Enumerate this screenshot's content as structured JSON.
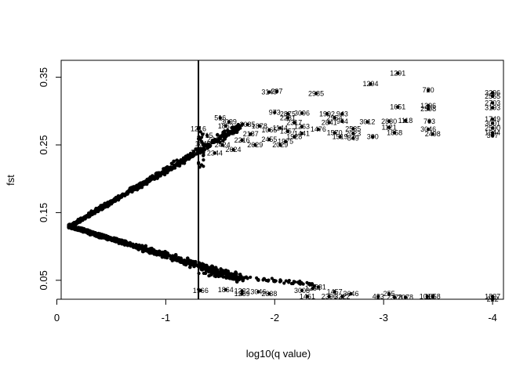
{
  "chart_data": {
    "type": "scatter",
    "title": "",
    "xlabel": "log10(q value)",
    "ylabel": "fst",
    "xlim": [
      -0.04,
      -4.1
    ],
    "ylim": [
      0.022,
      0.375
    ],
    "x_ticks": [
      {
        "value": 0,
        "label": "0"
      },
      {
        "value": -1,
        "label": "-1"
      },
      {
        "value": -2,
        "label": "-2"
      },
      {
        "value": -3,
        "label": "-3"
      },
      {
        "value": -4,
        "label": "-4"
      }
    ],
    "y_ticks": [
      {
        "value": 0.05,
        "label": "0.05"
      },
      {
        "value": 0.15,
        "label": "0.15"
      },
      {
        "value": 0.25,
        "label": "0.25"
      },
      {
        "value": 0.35,
        "label": "0.35"
      }
    ],
    "threshold_x": -1.3,
    "labeled_points": [
      {
        "x": -3.13,
        "y": 0.356,
        "label": "1291"
      },
      {
        "x": -2.88,
        "y": 0.34,
        "label": "1294"
      },
      {
        "x": -3.41,
        "y": 0.331,
        "label": "720"
      },
      {
        "x": -1.95,
        "y": 0.328,
        "label": "3149"
      },
      {
        "x": -2.02,
        "y": 0.329,
        "label": "297"
      },
      {
        "x": -2.38,
        "y": 0.326,
        "label": "2985"
      },
      {
        "x": -4.0,
        "y": 0.327,
        "label": "3296"
      },
      {
        "x": -4.0,
        "y": 0.322,
        "label": "2565"
      },
      {
        "x": -3.41,
        "y": 0.308,
        "label": "1396"
      },
      {
        "x": -3.41,
        "y": 0.303,
        "label": "2598"
      },
      {
        "x": -3.13,
        "y": 0.306,
        "label": "1651"
      },
      {
        "x": -4.0,
        "y": 0.312,
        "label": "2703"
      },
      {
        "x": -4.0,
        "y": 0.305,
        "label": "3193"
      },
      {
        "x": -2.0,
        "y": 0.298,
        "label": "973"
      },
      {
        "x": -2.12,
        "y": 0.296,
        "label": "2875"
      },
      {
        "x": -2.25,
        "y": 0.297,
        "label": "3096"
      },
      {
        "x": -2.48,
        "y": 0.296,
        "label": "1992"
      },
      {
        "x": -2.62,
        "y": 0.296,
        "label": "943"
      },
      {
        "x": -1.5,
        "y": 0.29,
        "label": "516"
      },
      {
        "x": -2.12,
        "y": 0.29,
        "label": "2281"
      },
      {
        "x": -2.55,
        "y": 0.29,
        "label": "2954"
      },
      {
        "x": -2.62,
        "y": 0.285,
        "label": "944"
      },
      {
        "x": -1.58,
        "y": 0.284,
        "label": "3099"
      },
      {
        "x": -1.75,
        "y": 0.28,
        "label": "2085"
      },
      {
        "x": -2.18,
        "y": 0.283,
        "label": "2317"
      },
      {
        "x": -2.25,
        "y": 0.277,
        "label": "1263"
      },
      {
        "x": -2.5,
        "y": 0.283,
        "label": "2841"
      },
      {
        "x": -2.85,
        "y": 0.284,
        "label": "3012"
      },
      {
        "x": -3.05,
        "y": 0.285,
        "label": "2830"
      },
      {
        "x": -3.2,
        "y": 0.286,
        "label": "1118"
      },
      {
        "x": -3.42,
        "y": 0.285,
        "label": "703"
      },
      {
        "x": -4.0,
        "y": 0.288,
        "label": "1749"
      },
      {
        "x": -4.0,
        "y": 0.282,
        "label": "3001"
      },
      {
        "x": -1.55,
        "y": 0.278,
        "label": "1862"
      },
      {
        "x": -1.86,
        "y": 0.278,
        "label": "1878"
      },
      {
        "x": -2.05,
        "y": 0.275,
        "label": "1144"
      },
      {
        "x": -1.95,
        "y": 0.272,
        "label": "1065"
      },
      {
        "x": -2.4,
        "y": 0.273,
        "label": "1476"
      },
      {
        "x": -2.72,
        "y": 0.274,
        "label": "2535"
      },
      {
        "x": -3.05,
        "y": 0.276,
        "label": "1121"
      },
      {
        "x": -3.41,
        "y": 0.273,
        "label": "3046"
      },
      {
        "x": -4.0,
        "y": 0.275,
        "label": "2590"
      },
      {
        "x": -4.0,
        "y": 0.268,
        "label": "1544"
      },
      {
        "x": -1.3,
        "y": 0.274,
        "label": "1216"
      },
      {
        "x": -1.58,
        "y": 0.268,
        "label": "851"
      },
      {
        "x": -1.38,
        "y": 0.264,
        "label": "715"
      },
      {
        "x": -1.78,
        "y": 0.266,
        "label": "2187"
      },
      {
        "x": -2.12,
        "y": 0.27,
        "label": "1357"
      },
      {
        "x": -2.25,
        "y": 0.267,
        "label": "1441"
      },
      {
        "x": -2.55,
        "y": 0.268,
        "label": "1570"
      },
      {
        "x": -2.72,
        "y": 0.267,
        "label": "2023"
      },
      {
        "x": -3.1,
        "y": 0.268,
        "label": "1858"
      },
      {
        "x": -3.45,
        "y": 0.266,
        "label": "2498"
      },
      {
        "x": -4.0,
        "y": 0.264,
        "label": "307"
      },
      {
        "x": -2.18,
        "y": 0.262,
        "label": "1928"
      },
      {
        "x": -2.6,
        "y": 0.262,
        "label": "1519"
      },
      {
        "x": -2.72,
        "y": 0.26,
        "label": "849"
      },
      {
        "x": -2.9,
        "y": 0.262,
        "label": "300"
      },
      {
        "x": -1.45,
        "y": 0.258,
        "label": "2246"
      },
      {
        "x": -1.7,
        "y": 0.257,
        "label": "2216"
      },
      {
        "x": -1.95,
        "y": 0.258,
        "label": "2455"
      },
      {
        "x": -2.1,
        "y": 0.255,
        "label": "1975"
      },
      {
        "x": -1.34,
        "y": 0.252,
        "label": "1840"
      },
      {
        "x": -1.52,
        "y": 0.25,
        "label": "2424"
      },
      {
        "x": -1.82,
        "y": 0.25,
        "label": "2629"
      },
      {
        "x": -2.05,
        "y": 0.25,
        "label": "2029"
      },
      {
        "x": -1.62,
        "y": 0.243,
        "label": "2624"
      },
      {
        "x": -1.3,
        "y": 0.239,
        "label": "2297"
      },
      {
        "x": -1.45,
        "y": 0.238,
        "label": "2344"
      },
      {
        "x": -1.32,
        "y": 0.035,
        "label": "1966"
      },
      {
        "x": -1.55,
        "y": 0.036,
        "label": "1864"
      },
      {
        "x": -1.7,
        "y": 0.034,
        "label": "1222"
      },
      {
        "x": -1.85,
        "y": 0.033,
        "label": "3046"
      },
      {
        "x": -1.7,
        "y": 0.03,
        "label": "1289"
      },
      {
        "x": -1.95,
        "y": 0.03,
        "label": "2838"
      },
      {
        "x": -2.25,
        "y": 0.035,
        "label": "3008"
      },
      {
        "x": -2.35,
        "y": 0.038,
        "label": "1264"
      },
      {
        "x": -2.4,
        "y": 0.04,
        "label": "2531"
      },
      {
        "x": -2.55,
        "y": 0.033,
        "label": "1457"
      },
      {
        "x": -2.7,
        "y": 0.03,
        "label": "3646"
      },
      {
        "x": -2.3,
        "y": 0.026,
        "label": "1461"
      },
      {
        "x": -2.5,
        "y": 0.026,
        "label": "2396"
      },
      {
        "x": -2.62,
        "y": 0.026,
        "label": "3222"
      },
      {
        "x": -2.95,
        "y": 0.026,
        "label": "423"
      },
      {
        "x": -3.05,
        "y": 0.03,
        "label": "255"
      },
      {
        "x": -3.1,
        "y": 0.025,
        "label": "2378"
      },
      {
        "x": -3.2,
        "y": 0.025,
        "label": "2078"
      },
      {
        "x": -3.4,
        "y": 0.026,
        "label": "1019"
      },
      {
        "x": -3.45,
        "y": 0.026,
        "label": "1658"
      },
      {
        "x": -4.0,
        "y": 0.026,
        "label": "1827"
      },
      {
        "x": -4.0,
        "y": 0.022,
        "label": "222"
      }
    ]
  }
}
